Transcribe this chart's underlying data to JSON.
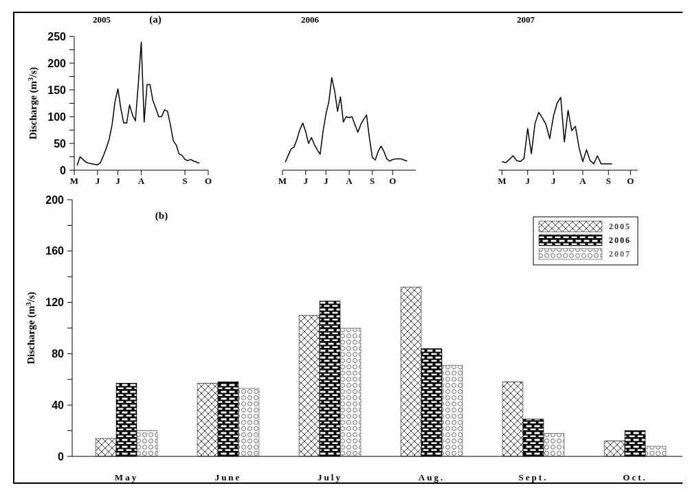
{
  "chart_data": [
    {
      "type": "line",
      "title": "2005",
      "ylabel": "Discharge (m$^{3}$/s)",
      "annotations": [
        "(a)"
      ],
      "categories": [
        "M",
        null,
        null,
        null,
        null,
        null,
        null,
        null,
        "J",
        null,
        null,
        null,
        null,
        null,
        null,
        "J",
        null,
        null,
        null,
        null,
        null,
        null,
        null,
        "A",
        null,
        null,
        null,
        null,
        null,
        null,
        null,
        null,
        null,
        null,
        null,
        null,
        null,
        null,
        "S",
        null,
        null,
        null,
        null,
        null,
        null,
        null,
        "O"
      ],
      "ylim": [
        0,
        250
      ],
      "yticks": [
        0,
        {
          "value": 25,
          "label": null
        },
        50,
        {
          "value": 75,
          "label": null
        },
        100,
        {
          "value": 125,
          "label": null
        },
        150,
        {
          "value": 175,
          "label": null
        },
        200,
        {
          "value": 225,
          "label": null
        },
        250
      ],
      "series": [
        {
          "color": "#000000",
          "values": [
            null,
            9,
            25,
            20,
            15,
            13,
            12,
            11,
            10,
            14,
            27,
            41,
            58,
            85,
            128,
            152,
            115,
            88,
            88,
            122,
            103,
            92,
            162,
            239,
            90,
            160,
            160,
            130,
            116,
            100,
            100,
            113,
            110,
            85,
            55,
            47,
            30,
            28,
            20,
            18,
            20,
            17,
            15,
            13,
            null,
            null,
            null
          ]
        }
      ]
    },
    {
      "type": "line",
      "title": "2006",
      "tick_labels": "x",
      "categories": [
        "M",
        null,
        null,
        null,
        null,
        null,
        null,
        null,
        "J",
        null,
        null,
        null,
        null,
        null,
        null,
        "J",
        null,
        null,
        null,
        null,
        null,
        null,
        null,
        "A",
        null,
        null,
        null,
        null,
        null,
        null,
        null,
        "S",
        null,
        null,
        null,
        null,
        null,
        null,
        "O",
        null,
        null,
        null,
        null,
        null,
        null,
        null,
        null
      ],
      "ylim": [
        0,
        250
      ],
      "series": [
        {
          "color": "#000000",
          "values": [
            null,
            15,
            28,
            40,
            43,
            58,
            76,
            88,
            72,
            50,
            61,
            48,
            38,
            30,
            73,
            105,
            128,
            173,
            148,
            110,
            137,
            90,
            100,
            98,
            100,
            85,
            71,
            85,
            95,
            103,
            60,
            24,
            19,
            35,
            45,
            35,
            21,
            17,
            20,
            21,
            21,
            21,
            19,
            17,
            null,
            null,
            null
          ]
        }
      ]
    },
    {
      "type": "line",
      "title": "2007",
      "tick_labels": "x",
      "categories": [
        null,
        "M",
        null,
        null,
        null,
        null,
        null,
        null,
        "J",
        null,
        null,
        null,
        null,
        null,
        null,
        "J",
        null,
        null,
        null,
        null,
        null,
        null,
        null,
        "A",
        null,
        null,
        null,
        null,
        null,
        null,
        "S",
        null,
        null,
        null,
        null,
        null,
        "O",
        null,
        null
      ],
      "ylim": [
        0,
        250
      ],
      "series": [
        {
          "color": "#000000",
          "values": [
            null,
            16,
            14,
            20,
            27,
            18,
            16,
            22,
            78,
            31,
            87,
            108,
            98,
            85,
            59,
            100,
            125,
            136,
            53,
            112,
            74,
            82,
            42,
            16,
            38,
            18,
            12,
            27,
            12,
            12,
            12,
            12,
            null,
            null,
            null,
            null,
            null,
            null,
            null
          ]
        }
      ]
    },
    {
      "type": "bar",
      "ylabel": "Discharge (m$^{3}$/s)",
      "annotations": [
        "(b)"
      ],
      "categories": [
        "May",
        "June",
        "July",
        "Aug.",
        "Sept.",
        "Oct."
      ],
      "ylim": [
        0,
        200
      ],
      "yticks": [
        0,
        {
          "value": 20,
          "label": null
        },
        40,
        {
          "value": 60,
          "label": null
        },
        80,
        {
          "value": 100,
          "label": null
        },
        120,
        {
          "value": 140,
          "label": null
        },
        160,
        {
          "value": 180,
          "label": null
        },
        200
      ],
      "legend": "top right",
      "series": [
        {
          "name": "2005",
          "color": "#404040",
          "values": [
            14,
            57,
            110,
            132,
            58,
            12
          ]
        },
        {
          "name": "2006",
          "color": "#000000",
          "values": [
            57,
            58,
            121,
            84,
            29,
            20
          ]
        },
        {
          "name": "2007",
          "color": "#606060",
          "values": [
            20,
            53,
            100,
            71,
            18,
            8
          ]
        }
      ]
    }
  ]
}
